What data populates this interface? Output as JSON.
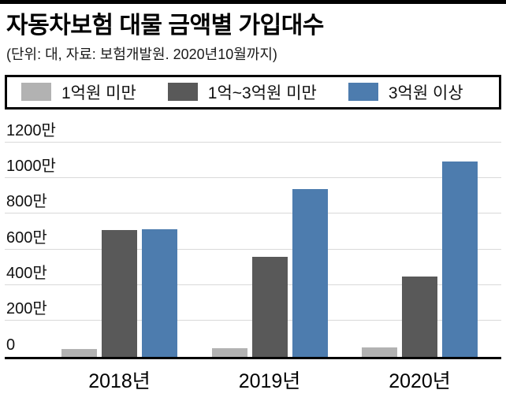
{
  "page": {
    "title": "자동차보험 대물 금액별 가입대수",
    "subtitle": "(단위: 대, 자료: 보험개발원. 2020년10월까지)"
  },
  "colors": {
    "under_1": "#b2b2b2",
    "one_to_three": "#595959",
    "over_3": "#4d7cae",
    "axis": "#000000",
    "gridline": "#d9d9d9"
  },
  "legend": [
    {
      "label": "1억원 미만",
      "color": "#b2b2b2"
    },
    {
      "label": "1억~3억원 미만",
      "color": "#595959"
    },
    {
      "label": "3억원 이상",
      "color": "#4d7cae"
    }
  ],
  "chart_data": {
    "type": "bar",
    "title": "자동차보험 대물 금액별 가입대수",
    "subtitle": "(단위: 대, 자료: 보험개발원. 2020년10월까지)",
    "categories": [
      "2018년",
      "2019년",
      "2020년"
    ],
    "series": [
      {
        "name": "1억원 미만",
        "color": "#b2b2b2",
        "values": [
          45,
          50,
          55
        ]
      },
      {
        "name": "1억~3억원 미만",
        "color": "#595959",
        "values": [
          710,
          560,
          450
        ]
      },
      {
        "name": "3억원 이상",
        "color": "#4d7cae",
        "values": [
          715,
          940,
          1095
        ]
      }
    ],
    "xlabel": "",
    "ylabel": "",
    "ylim": [
      0,
      1200
    ],
    "yticks": [
      0,
      200,
      400,
      600,
      800,
      1000,
      1200
    ],
    "ytick_labels": [
      "0",
      "200만",
      "400만",
      "600만",
      "800만",
      "1000만",
      "1200만"
    ],
    "grid": true,
    "legend_position": "top"
  }
}
